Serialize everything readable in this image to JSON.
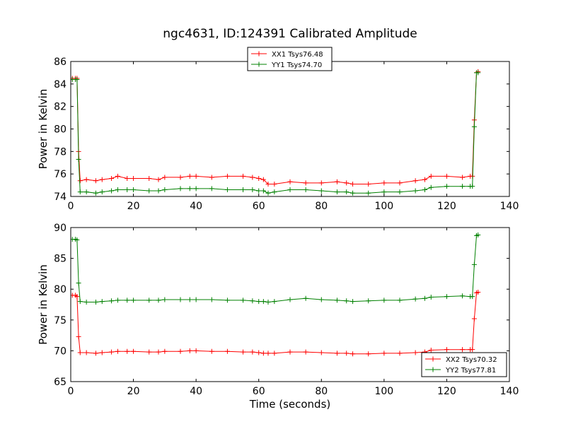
{
  "figure": {
    "title": "ngc4631, ID:124391 Calibrated Amplitude"
  },
  "colors": {
    "xx": "#ff0000",
    "yy": "#008000",
    "axes": "#000000",
    "background": "#ffffff"
  },
  "chart_data": [
    {
      "type": "line",
      "xlabel": "",
      "ylabel": "Power in Kelvin",
      "xlim": [
        0,
        140
      ],
      "ylim": [
        74,
        86
      ],
      "xticks": [
        0,
        20,
        40,
        60,
        80,
        100,
        120,
        140
      ],
      "yticks": [
        74,
        76,
        78,
        80,
        82,
        84,
        86
      ],
      "grid": false,
      "legend_position": "top-center",
      "series": [
        {
          "name": "XX1 Tsys76.48",
          "color": "#ff0000",
          "x": [
            0.5,
            1.5,
            2.0,
            2.5,
            3,
            5,
            8,
            10,
            13,
            15,
            18,
            20,
            25,
            28,
            30,
            35,
            38,
            40,
            45,
            50,
            55,
            58,
            60,
            61.5,
            63,
            65,
            70,
            75,
            80,
            85,
            88,
            90,
            95,
            100,
            105,
            110,
            113,
            115,
            120,
            125,
            127.5,
            128.2,
            128.8,
            129.5,
            130
          ],
          "y": [
            84.5,
            84.5,
            84.5,
            78.0,
            75.4,
            75.5,
            75.4,
            75.5,
            75.6,
            75.8,
            75.6,
            75.6,
            75.6,
            75.5,
            75.7,
            75.7,
            75.8,
            75.8,
            75.7,
            75.8,
            75.8,
            75.7,
            75.6,
            75.5,
            75.1,
            75.1,
            75.3,
            75.2,
            75.2,
            75.3,
            75.2,
            75.1,
            75.1,
            75.2,
            75.2,
            75.4,
            75.5,
            75.8,
            75.8,
            75.7,
            75.8,
            75.8,
            80.8,
            85.0,
            85.1
          ]
        },
        {
          "name": "YY1 Tsys74.70",
          "color": "#008000",
          "x": [
            0.5,
            1.5,
            2.0,
            2.5,
            3,
            5,
            8,
            10,
            13,
            15,
            18,
            20,
            25,
            28,
            30,
            35,
            38,
            40,
            45,
            50,
            55,
            58,
            60,
            61.5,
            63,
            65,
            70,
            75,
            80,
            85,
            88,
            90,
            95,
            100,
            105,
            110,
            113,
            115,
            120,
            125,
            127.5,
            128.2,
            128.8,
            129.5,
            130
          ],
          "y": [
            84.4,
            84.4,
            84.4,
            77.3,
            74.4,
            74.4,
            74.3,
            74.4,
            74.5,
            74.6,
            74.6,
            74.6,
            74.5,
            74.5,
            74.6,
            74.7,
            74.7,
            74.7,
            74.7,
            74.6,
            74.6,
            74.6,
            74.5,
            74.5,
            74.3,
            74.4,
            74.6,
            74.6,
            74.5,
            74.4,
            74.4,
            74.3,
            74.3,
            74.4,
            74.4,
            74.5,
            74.6,
            74.8,
            74.9,
            74.9,
            74.9,
            74.9,
            80.2,
            85.0,
            85.0
          ]
        }
      ]
    },
    {
      "type": "line",
      "xlabel": "Time (seconds)",
      "ylabel": "Power in Kelvin",
      "xlim": [
        0,
        140
      ],
      "ylim": [
        65,
        90
      ],
      "xticks": [
        0,
        20,
        40,
        60,
        80,
        100,
        120,
        140
      ],
      "yticks": [
        65,
        70,
        75,
        80,
        85,
        90
      ],
      "grid": false,
      "legend_position": "bottom-right",
      "series": [
        {
          "name": "XX2 Tsys70.32",
          "color": "#ff0000",
          "x": [
            0.5,
            1.5,
            2.0,
            2.5,
            3,
            5,
            8,
            10,
            13,
            15,
            18,
            20,
            25,
            28,
            30,
            35,
            38,
            40,
            45,
            50,
            55,
            58,
            60,
            61.5,
            63,
            65,
            70,
            75,
            80,
            85,
            88,
            90,
            95,
            100,
            105,
            110,
            113,
            115,
            120,
            125,
            127.5,
            128.2,
            128.8,
            129.5,
            130
          ],
          "y": [
            79.0,
            79.0,
            78.8,
            72.3,
            69.7,
            69.7,
            69.6,
            69.7,
            69.8,
            69.9,
            69.9,
            69.9,
            69.8,
            69.8,
            69.9,
            69.9,
            70.0,
            70.0,
            69.9,
            69.9,
            69.8,
            69.8,
            69.7,
            69.6,
            69.6,
            69.6,
            69.8,
            69.8,
            69.7,
            69.6,
            69.6,
            69.5,
            69.5,
            69.6,
            69.6,
            69.7,
            69.8,
            70.1,
            70.2,
            70.2,
            70.2,
            70.2,
            75.2,
            79.4,
            79.5
          ]
        },
        {
          "name": "YY2 Tsys77.81",
          "color": "#008000",
          "x": [
            0.5,
            1.5,
            2.0,
            2.5,
            3,
            5,
            8,
            10,
            13,
            15,
            18,
            20,
            25,
            28,
            30,
            35,
            38,
            40,
            45,
            50,
            55,
            58,
            60,
            61.5,
            63,
            65,
            70,
            75,
            80,
            85,
            88,
            90,
            95,
            100,
            105,
            110,
            113,
            115,
            120,
            125,
            127.5,
            128.2,
            128.8,
            129.5,
            130
          ],
          "y": [
            88.1,
            88.1,
            88.0,
            81.0,
            78.0,
            77.9,
            77.9,
            78.0,
            78.1,
            78.2,
            78.2,
            78.2,
            78.2,
            78.2,
            78.3,
            78.3,
            78.3,
            78.3,
            78.3,
            78.2,
            78.2,
            78.1,
            78.0,
            78.0,
            77.9,
            78.0,
            78.3,
            78.5,
            78.3,
            78.2,
            78.1,
            78.0,
            78.1,
            78.2,
            78.2,
            78.4,
            78.5,
            78.7,
            78.8,
            78.9,
            78.8,
            78.8,
            84.0,
            88.7,
            88.8
          ]
        }
      ]
    }
  ]
}
